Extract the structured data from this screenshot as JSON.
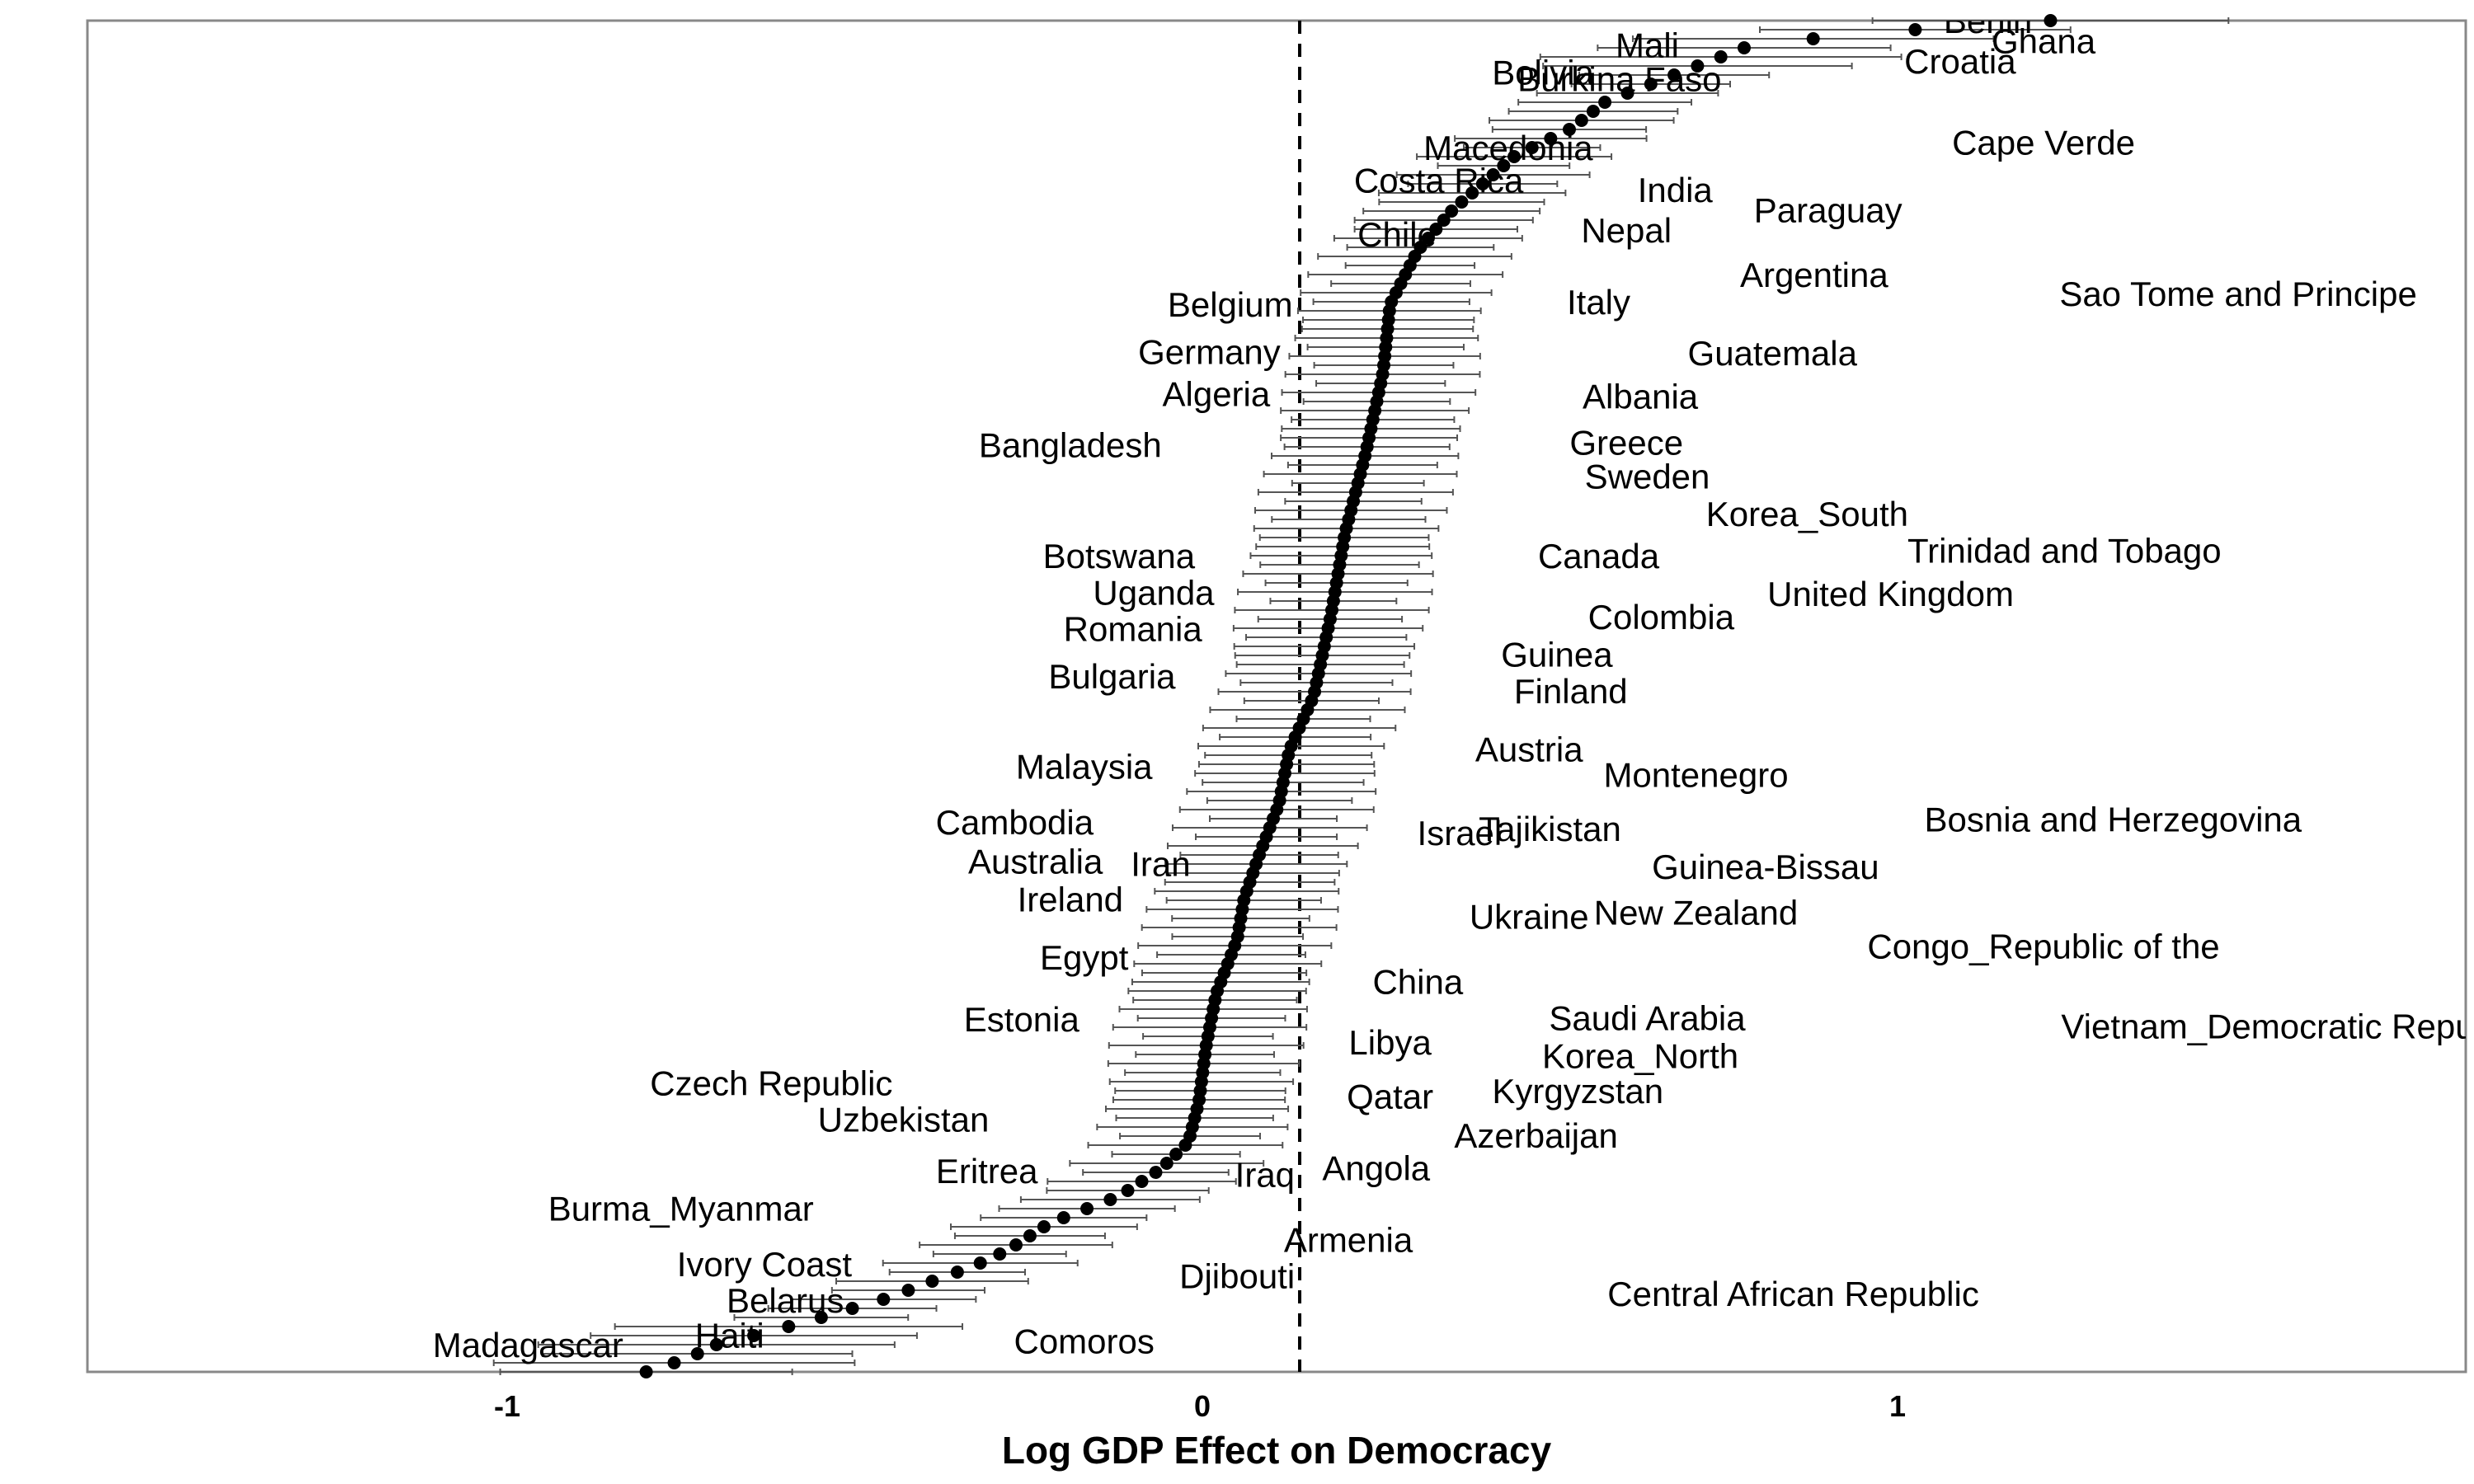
{
  "chart_data": {
    "type": "scatter",
    "subtype": "caterpillar point estimates with interval bars, sorted",
    "xlabel": "Log GDP Effect on Democracy",
    "ylabel": "",
    "xlim": [
      -1.0,
      1.0
    ],
    "x_ticks": [
      -1,
      0,
      1
    ],
    "x_tick_labels": [
      "-1",
      "0",
      "1"
    ],
    "reference_line": {
      "x": 0.14,
      "style": "dashed"
    },
    "grid": false,
    "legend": "none",
    "colors": {
      "point": "#000000",
      "interval": "#555555",
      "reference_line": "#000000",
      "frame": "#888888"
    },
    "labels": [
      {
        "text": "Benin",
        "x": 1.13,
        "y": 1.0
      },
      {
        "text": "Ghana",
        "x": 1.21,
        "y": 0.985
      },
      {
        "text": "Mali",
        "x": 0.64,
        "y": 0.982
      },
      {
        "text": "Croatia",
        "x": 1.09,
        "y": 0.97
      },
      {
        "text": "Burkina Faso",
        "x": 0.6,
        "y": 0.957
      },
      {
        "text": "Bolivia",
        "x": 0.49,
        "y": 0.962
      },
      {
        "text": "Cape Verde",
        "x": 1.21,
        "y": 0.91
      },
      {
        "text": "Macedonia",
        "x": 0.44,
        "y": 0.906
      },
      {
        "text": "Costa Rica",
        "x": 0.34,
        "y": 0.882
      },
      {
        "text": "India",
        "x": 0.68,
        "y": 0.875
      },
      {
        "text": "Paraguay",
        "x": 0.9,
        "y": 0.86
      },
      {
        "text": "Nepal",
        "x": 0.61,
        "y": 0.845
      },
      {
        "text": "Chile",
        "x": 0.28,
        "y": 0.842
      },
      {
        "text": "Argentina",
        "x": 0.88,
        "y": 0.812
      },
      {
        "text": "Sao Tome and Principe",
        "x": 1.49,
        "y": 0.798
      },
      {
        "text": "Belgium",
        "x": 0.04,
        "y": 0.79
      },
      {
        "text": "Italy",
        "x": 0.57,
        "y": 0.792
      },
      {
        "text": "Germany",
        "x": 0.01,
        "y": 0.755
      },
      {
        "text": "Guatemala",
        "x": 0.82,
        "y": 0.754
      },
      {
        "text": "Algeria",
        "x": 0.02,
        "y": 0.724
      },
      {
        "text": "Albania",
        "x": 0.63,
        "y": 0.722
      },
      {
        "text": "Bangladesh",
        "x": -0.19,
        "y": 0.686
      },
      {
        "text": "Greece",
        "x": 0.61,
        "y": 0.688
      },
      {
        "text": "Sweden",
        "x": 0.64,
        "y": 0.663
      },
      {
        "text": "Korea_South",
        "x": 0.87,
        "y": 0.635
      },
      {
        "text": "Trinidad and Tobago",
        "x": 1.24,
        "y": 0.608
      },
      {
        "text": "Canada",
        "x": 0.57,
        "y": 0.604
      },
      {
        "text": "Botswana",
        "x": -0.12,
        "y": 0.604
      },
      {
        "text": "United Kingdom",
        "x": 0.99,
        "y": 0.576
      },
      {
        "text": "Uganda",
        "x": -0.07,
        "y": 0.577
      },
      {
        "text": "Colombia",
        "x": 0.66,
        "y": 0.559
      },
      {
        "text": "Romania",
        "x": -0.1,
        "y": 0.55
      },
      {
        "text": "Guinea",
        "x": 0.51,
        "y": 0.531
      },
      {
        "text": "Finland",
        "x": 0.53,
        "y": 0.504
      },
      {
        "text": "Bulgaria",
        "x": -0.13,
        "y": 0.515
      },
      {
        "text": "Austria",
        "x": 0.47,
        "y": 0.461
      },
      {
        "text": "Montenegro",
        "x": 0.71,
        "y": 0.442
      },
      {
        "text": "Malaysia",
        "x": -0.17,
        "y": 0.448
      },
      {
        "text": "Cambodia",
        "x": -0.27,
        "y": 0.407
      },
      {
        "text": "Israel",
        "x": 0.37,
        "y": 0.399
      },
      {
        "text": "Tajikistan",
        "x": 0.5,
        "y": 0.402
      },
      {
        "text": "Bosnia and Herzegovina",
        "x": 1.31,
        "y": 0.409
      },
      {
        "text": "Australia",
        "x": -0.24,
        "y": 0.378
      },
      {
        "text": "Iran",
        "x": -0.06,
        "y": 0.376
      },
      {
        "text": "Guinea-Bissau",
        "x": 0.81,
        "y": 0.374
      },
      {
        "text": "Ireland",
        "x": -0.19,
        "y": 0.35
      },
      {
        "text": "Ukraine",
        "x": 0.47,
        "y": 0.337
      },
      {
        "text": "New Zealand",
        "x": 0.71,
        "y": 0.34
      },
      {
        "text": "Congo_Republic of the",
        "x": 1.21,
        "y": 0.315
      },
      {
        "text": "Egypt",
        "x": -0.17,
        "y": 0.307
      },
      {
        "text": "China",
        "x": 0.31,
        "y": 0.289
      },
      {
        "text": "Estonia",
        "x": -0.26,
        "y": 0.261
      },
      {
        "text": "Saudi Arabia",
        "x": 0.64,
        "y": 0.262
      },
      {
        "text": "Vietnam_Democratic Republic",
        "x": 1.57,
        "y": 0.256
      },
      {
        "text": "Libya",
        "x": 0.27,
        "y": 0.244
      },
      {
        "text": "Korea_North",
        "x": 0.63,
        "y": 0.234
      },
      {
        "text": "Czech Republic",
        "x": -0.62,
        "y": 0.214
      },
      {
        "text": "Qatar",
        "x": 0.27,
        "y": 0.204
      },
      {
        "text": "Kyrgyzstan",
        "x": 0.54,
        "y": 0.208
      },
      {
        "text": "Uzbekistan",
        "x": -0.43,
        "y": 0.187
      },
      {
        "text": "Azerbaijan",
        "x": 0.48,
        "y": 0.175
      },
      {
        "text": "Eritrea",
        "x": -0.31,
        "y": 0.149
      },
      {
        "text": "Iraq",
        "x": 0.09,
        "y": 0.146
      },
      {
        "text": "Angola",
        "x": 0.25,
        "y": 0.151
      },
      {
        "text": "Burma_Myanmar",
        "x": -0.75,
        "y": 0.121
      },
      {
        "text": "Armenia",
        "x": 0.21,
        "y": 0.098
      },
      {
        "text": "Ivory Coast",
        "x": -0.63,
        "y": 0.08
      },
      {
        "text": "Djibouti",
        "x": 0.05,
        "y": 0.071
      },
      {
        "text": "Central African Republic",
        "x": 0.85,
        "y": 0.058
      },
      {
        "text": "Belarus",
        "x": -0.6,
        "y": 0.053
      },
      {
        "text": "Haiti",
        "x": -0.68,
        "y": 0.027
      },
      {
        "text": "Comoros",
        "x": -0.17,
        "y": 0.023
      },
      {
        "text": "Madagascar",
        "x": -0.97,
        "y": 0.02
      }
    ]
  }
}
